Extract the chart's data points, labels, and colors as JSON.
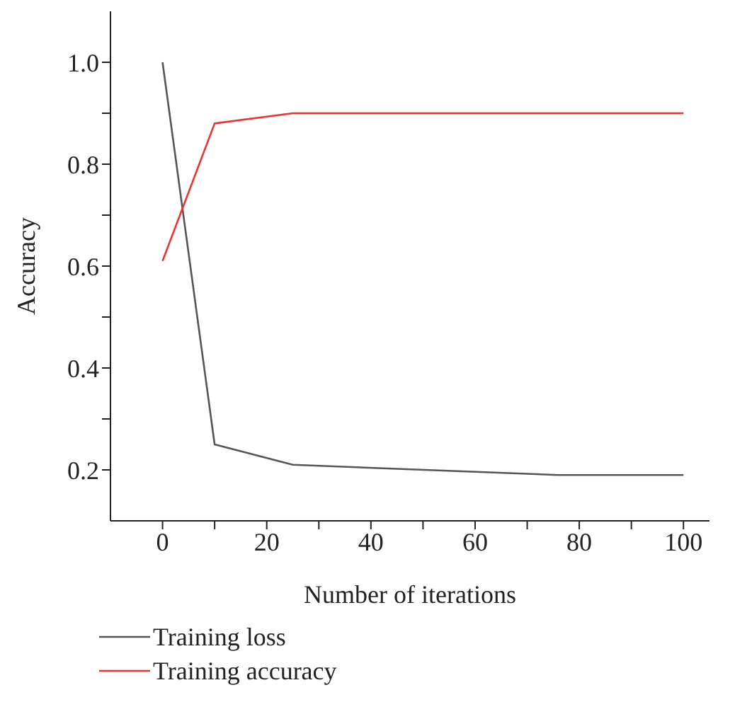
{
  "chart_data": {
    "type": "line",
    "xlabel": "Number of iterations",
    "ylabel": "Accuracy",
    "xlim": [
      -10,
      105
    ],
    "xticks": [
      0,
      {
        "value": 10,
        "label": null
      },
      20,
      {
        "value": 30,
        "label": null
      },
      40,
      {
        "value": 50,
        "label": null
      },
      60,
      {
        "value": 70,
        "label": null
      },
      80,
      {
        "value": 90,
        "label": null
      },
      100
    ],
    "ylim": [
      0.1,
      1.1
    ],
    "yticks": [
      0.2,
      {
        "value": 0.3,
        "label": null
      },
      0.4,
      {
        "value": 0.5,
        "label": null
      },
      0.6,
      {
        "value": 0.7,
        "label": null
      },
      0.8,
      {
        "value": 0.9,
        "label": null
      },
      {
        "value": 1.0,
        "label": "1.0"
      }
    ],
    "grid": false,
    "legend": "bottom left",
    "marker": "none",
    "line_style": "solid",
    "series": [
      {
        "name": "Training loss",
        "color": "#555555",
        "x": [
          0,
          10,
          25,
          76,
          100
        ],
        "values": [
          1.0,
          0.25,
          0.21,
          0.19,
          0.19
        ]
      },
      {
        "name": "Training accuracy",
        "color": "#ee3333",
        "x": [
          0,
          10,
          25,
          100
        ],
        "values": [
          0.61,
          0.88,
          0.9,
          0.9
        ]
      }
    ]
  }
}
